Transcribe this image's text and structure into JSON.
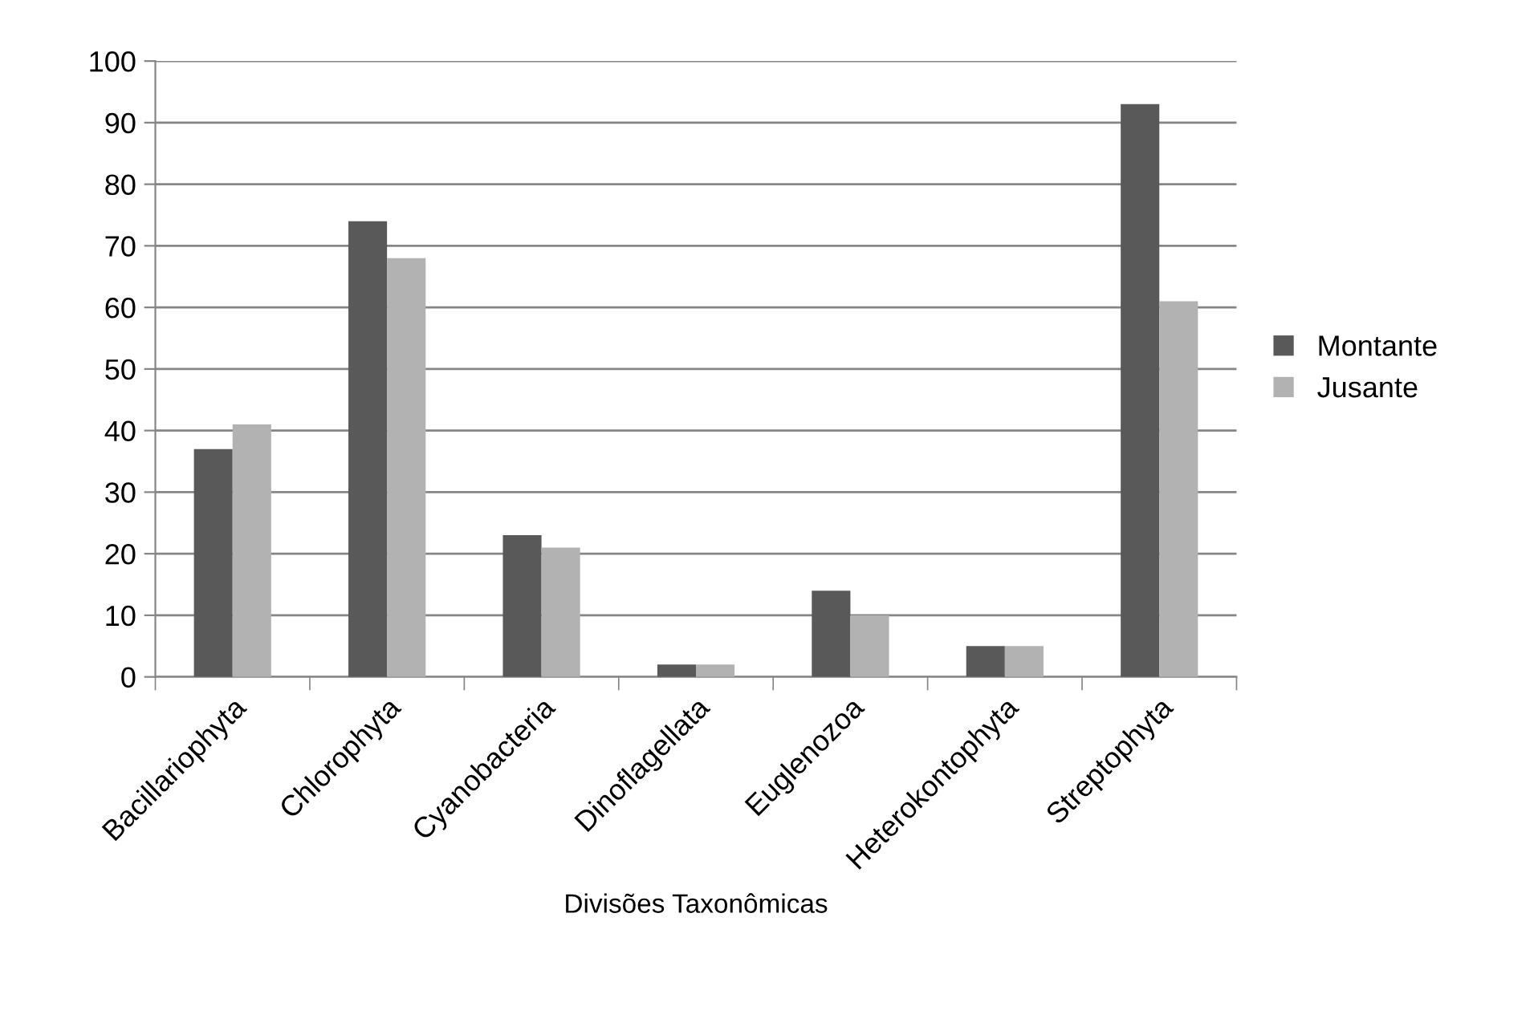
{
  "chart_data": {
    "type": "bar",
    "xlabel": "Divisões Taxonômicas",
    "categories": [
      "Bacillariophyta",
      "Chlorophyta",
      "Cyanobacteria",
      "Dinoflagellata",
      "Euglenozoa",
      "Heterokontophyta",
      "Streptophyta"
    ],
    "series": [
      {
        "name": "Montante",
        "color": "#595959",
        "values": [
          37,
          74,
          23,
          2,
          14,
          5,
          93
        ]
      },
      {
        "name": "Jusante",
        "color": "#b2b2b2",
        "values": [
          41,
          68,
          21,
          2,
          10,
          5,
          61
        ]
      }
    ],
    "ylim": [
      0,
      100
    ],
    "yticks": [
      0,
      10,
      20,
      30,
      40,
      50,
      60,
      70,
      80,
      90,
      100
    ],
    "grid": "y",
    "legend": "right"
  }
}
